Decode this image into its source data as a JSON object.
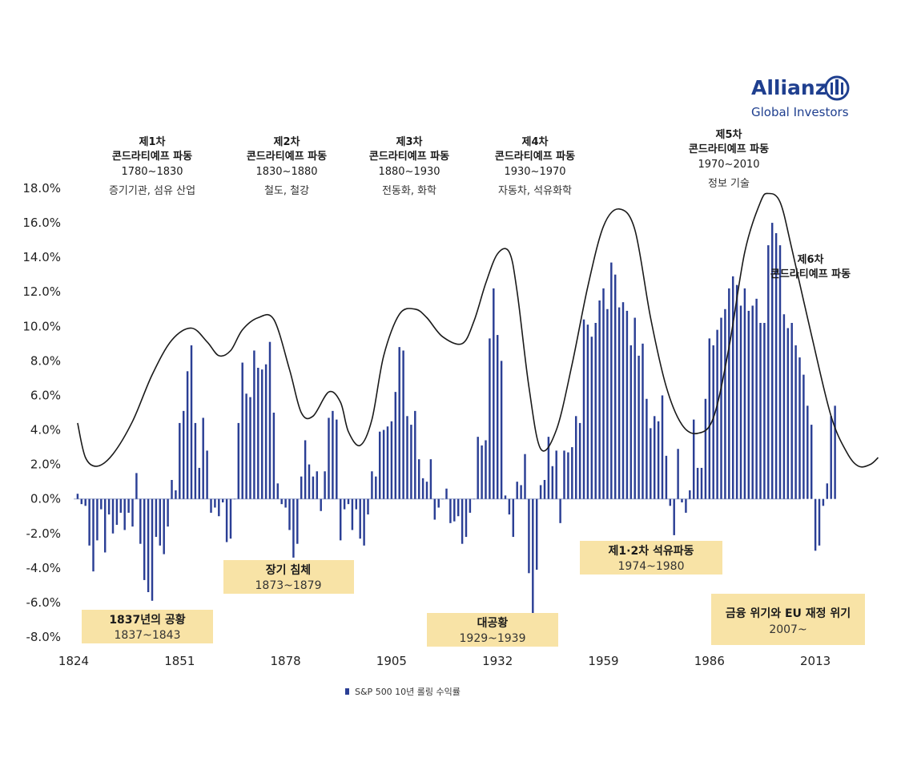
{
  "brand": {
    "name": "Allianz",
    "subtitle": "Global Investors",
    "color": "#1f3f8f"
  },
  "chart_data": {
    "type": "bar",
    "title": "",
    "xlabel": "",
    "ylabel": "",
    "ylim": [
      -8,
      18
    ],
    "xlim": [
      1824,
      2030
    ],
    "yticks": [
      -8,
      -6,
      -4,
      -2,
      0,
      2,
      4,
      6,
      8,
      10,
      12,
      14,
      16,
      18
    ],
    "ytick_labels": [
      "-8.0%",
      "-6.0%",
      "-4.0%",
      "-2.0%",
      "0.0%",
      "2.0%",
      "4.0%",
      "6.0%",
      "8.0%",
      "10.0%",
      "12.0%",
      "14.0%",
      "16.0%",
      "18.0%"
    ],
    "xticks": [
      1824,
      1851,
      1878,
      1905,
      1932,
      1959,
      1986,
      2013
    ],
    "xtick_labels": [
      "1824",
      "1851",
      "1878",
      "1905",
      "1932",
      "1959",
      "1986",
      "2013"
    ],
    "bar_color": "#2b3f95",
    "legend": {
      "label": "S&P 500 10년 롤링 수익률",
      "position": "bottom-center"
    },
    "series": [
      {
        "name": "S&P 500 10년 롤링 수익률",
        "x_start": 1825,
        "x_step": 1,
        "values": [
          0.3,
          -0.3,
          -0.4,
          -2.7,
          -4.2,
          -2.4,
          -0.6,
          -3.1,
          -0.9,
          -2.0,
          -1.5,
          -0.8,
          -1.8,
          -0.8,
          -1.6,
          1.5,
          -2.6,
          -4.7,
          -5.4,
          -5.9,
          -2.2,
          -2.7,
          -3.2,
          -1.6,
          1.1,
          0.5,
          4.4,
          5.1,
          7.4,
          8.9,
          4.4,
          1.8,
          4.7,
          2.8,
          -0.8,
          -0.5,
          -1.0,
          -0.2,
          -2.5,
          -2.3,
          0.0,
          4.4,
          7.9,
          6.1,
          5.9,
          8.6,
          7.6,
          7.5,
          7.8,
          9.1,
          5.0,
          0.9,
          -0.3,
          -0.5,
          -1.8,
          -3.4,
          -2.6,
          1.3,
          3.4,
          2.0,
          1.3,
          1.6,
          -0.7,
          1.6,
          4.7,
          5.1,
          4.6,
          -2.4,
          -0.6,
          -0.3,
          -1.8,
          -0.6,
          -2.3,
          -2.7,
          -0.9,
          1.6,
          1.3,
          3.9,
          4.0,
          4.2,
          4.5,
          6.2,
          8.8,
          8.6,
          4.8,
          4.3,
          5.1,
          2.3,
          1.2,
          1.0,
          2.3,
          -1.2,
          -0.5,
          0.0,
          0.6,
          -1.4,
          -1.3,
          -1.0,
          -2.6,
          -2.2,
          -0.8,
          0.0,
          3.6,
          3.1,
          3.4,
          9.3,
          12.2,
          9.5,
          8.0,
          0.2,
          -0.9,
          -2.2,
          1.0,
          0.8,
          2.6,
          -4.3,
          -6.7,
          -4.1,
          0.8,
          1.1,
          3.6,
          1.9,
          2.8,
          -1.4,
          2.8,
          2.7,
          3.0,
          4.8,
          4.4,
          10.4,
          10.1,
          9.4,
          10.2,
          11.5,
          12.2,
          11.0,
          13.7,
          13.0,
          11.1,
          11.4,
          10.9,
          8.9,
          10.5,
          8.3,
          9.0,
          5.8,
          4.1,
          4.8,
          4.5,
          6.0,
          2.5,
          -0.4,
          -2.1,
          2.9,
          -0.2,
          -0.8,
          0.5,
          4.6,
          1.8,
          1.8,
          5.8,
          9.3,
          8.9,
          9.8,
          10.5,
          11.0,
          12.2,
          12.9,
          12.4,
          11.2,
          12.2,
          10.9,
          11.2,
          11.6,
          10.2,
          10.2,
          14.7,
          16.0,
          15.4,
          14.7,
          10.7,
          9.9,
          10.2,
          8.9,
          8.2,
          7.2,
          5.4,
          4.3,
          -3.0,
          -2.7,
          -0.4,
          0.9,
          4.8,
          5.4
        ]
      },
      {
        "name": "콘드라티예프 파동",
        "type": "line",
        "x": [
          1825,
          1827,
          1830,
          1834,
          1839,
          1844,
          1849,
          1854,
          1858,
          1861,
          1864,
          1867,
          1871,
          1875,
          1879,
          1882,
          1885,
          1889,
          1892,
          1894,
          1897,
          1900,
          1903,
          1907,
          1911,
          1914,
          1918,
          1923,
          1926,
          1929,
          1932,
          1935,
          1937,
          1940,
          1943,
          1947,
          1951,
          1955,
          1959,
          1963,
          1967,
          1971,
          1975,
          1979,
          1983,
          1987,
          1991,
          1995,
          1999,
          2001,
          2004,
          2007,
          2012,
          2017,
          2021,
          2024,
          2027,
          2029
        ],
        "y": [
          4.4,
          2.4,
          1.9,
          2.6,
          4.5,
          7.2,
          9.2,
          9.9,
          9.1,
          8.3,
          8.6,
          9.8,
          10.5,
          10.4,
          7.5,
          5.0,
          4.8,
          6.2,
          5.6,
          3.9,
          3.1,
          4.6,
          8.3,
          10.7,
          11.0,
          10.5,
          9.4,
          9.0,
          10.3,
          12.5,
          14.2,
          14.3,
          12.0,
          6.5,
          2.9,
          4.0,
          7.8,
          12.3,
          15.8,
          16.8,
          15.6,
          10.5,
          6.5,
          4.3,
          3.8,
          4.7,
          8.8,
          14.3,
          17.2,
          17.7,
          17.2,
          14.5,
          9.5,
          4.8,
          2.7,
          1.9,
          2.0,
          2.4
        ]
      }
    ],
    "waves": [
      {
        "title": "제1차",
        "subtitle": "콘드라티예프 파동",
        "years": "1780~1830",
        "tech": "증기기관, 섬유 산업"
      },
      {
        "title": "제2차",
        "subtitle": "콘드라티예프 파동",
        "years": "1830~1880",
        "tech": "철도, 철강"
      },
      {
        "title": "제3차",
        "subtitle": "콘드라티예프 파동",
        "years": "1880~1930",
        "tech": "전동화, 화학"
      },
      {
        "title": "제4차",
        "subtitle": "콘드라티예프 파동",
        "years": "1930~1970",
        "tech": "자동차, 석유화학"
      },
      {
        "title": "제5차",
        "subtitle": "콘드라티예프 파동",
        "years": "1970~2010",
        "tech": "정보 기술"
      },
      {
        "title": "제6차",
        "subtitle": "콘드라티예프 파동"
      }
    ],
    "annotations": [
      {
        "title": "1837년의 공황",
        "years": "1837~1843"
      },
      {
        "title": "장기 침체",
        "years": "1873~1879"
      },
      {
        "title": "대공황",
        "years": "1929~1939"
      },
      {
        "title": "제1·2차 석유파동",
        "years": "1974~1980"
      },
      {
        "title": "금융 위기와 EU 재정 위기",
        "years": "2007~"
      }
    ]
  }
}
